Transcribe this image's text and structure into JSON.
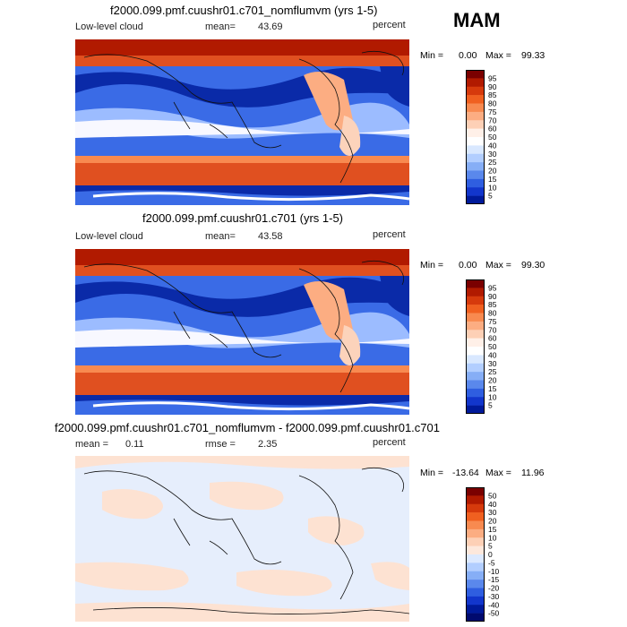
{
  "season": "MAM",
  "panels": [
    {
      "title": "f2000.099.pmf.cuushr01.c701_nomflumvm (yrs 1-5)",
      "left_label": "Low-level cloud",
      "stat_label": "mean=",
      "stat_value": "43.69",
      "units": "percent",
      "min_label": "Min =",
      "min_value": "0.00",
      "max_label": "Max =",
      "max_value": "99.33"
    },
    {
      "title": "f2000.099.pmf.cuushr01.c701 (yrs 1-5)",
      "left_label": "Low-level cloud",
      "stat_label": "mean=",
      "stat_value": "43.58",
      "units": "percent",
      "min_label": "Min =",
      "min_value": "0.00",
      "max_label": "Max =",
      "max_value": "99.30"
    },
    {
      "title": "f2000.099.pmf.cuushr01.c701_nomflumvm - f2000.099.pmf.cuushr01.c701",
      "left_label": "mean =",
      "left_value": "0.11",
      "stat_label": "rmse =",
      "stat_value": "2.35",
      "units": "percent",
      "min_label": "Min =",
      "min_value": "-13.64",
      "max_label": "Max =",
      "max_value": "11.96"
    }
  ],
  "colorbars": {
    "absolute": {
      "labels": [
        "95",
        "90",
        "85",
        "80",
        "75",
        "70",
        "60",
        "50",
        "40",
        "30",
        "25",
        "20",
        "15",
        "10",
        "5"
      ],
      "colors": [
        "#7a0000",
        "#b11a00",
        "#d63a0c",
        "#f06020",
        "#f88a50",
        "#fcad82",
        "#fdd0b6",
        "#fff0e8",
        "#ffffff",
        "#d9e8ff",
        "#b2ceff",
        "#86aef6",
        "#5a88ec",
        "#2f5ee0",
        "#1236cc",
        "#001a9a"
      ]
    },
    "difference": {
      "labels": [
        "50",
        "40",
        "30",
        "20",
        "15",
        "10",
        "5",
        "0",
        "-5",
        "-10",
        "-15",
        "-20",
        "-30",
        "-40",
        "-50"
      ],
      "colors": [
        "#7a0000",
        "#b11a00",
        "#d63a0c",
        "#f06020",
        "#f88a50",
        "#fcad82",
        "#fdd0b6",
        "#fde8dc",
        "#dce9ff",
        "#b2ceff",
        "#86aef6",
        "#5a88ec",
        "#2f5ee0",
        "#1236cc",
        "#001a9a",
        "#000a6e"
      ]
    }
  },
  "map_colors": {
    "red_dark": "#b11a00",
    "red": "#e05020",
    "orange": "#f88a50",
    "pale": "#fcd3bb",
    "white": "#f8f8ff",
    "blue_light": "#9cbcff",
    "blue": "#3a6be6",
    "blue_dark": "#0a2aa8",
    "diff_bg": "#e6eefc",
    "diff_pos": "#fde2d2"
  }
}
